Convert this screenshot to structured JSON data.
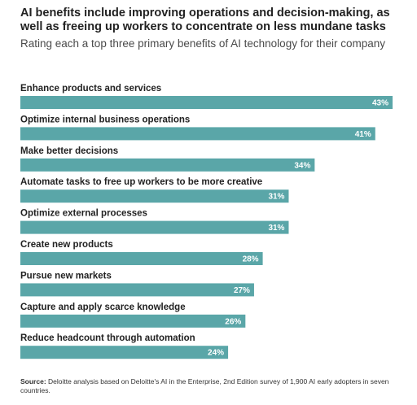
{
  "colors": {
    "bar": "#5aa6a8",
    "text": "#222222",
    "value_text": "#ffffff"
  },
  "footer": {
    "source_label": "Source:",
    "source_text": "Deloitte analysis based on Deloitte's AI in the Enterprise, 2nd Edition survey of 1,900 AI early adopters in seven countries."
  },
  "chart_data": {
    "type": "bar",
    "orientation": "horizontal",
    "title": "AI benefits include improving operations and decision-making, as well as freeing up workers to concentrate on less mundane tasks",
    "subtitle": "Rating each a top three primary benefits of AI technology for their company",
    "categories": [
      "Enhance products and services",
      "Optimize internal business operations",
      "Make better decisions",
      "Automate tasks to free up workers to be more creative",
      "Optimize external processes",
      "Create new products",
      "Pursue new markets",
      "Capture and apply scarce knowledge",
      "Reduce headcount through automation"
    ],
    "values": [
      43,
      41,
      34,
      31,
      31,
      28,
      27,
      26,
      24
    ],
    "value_labels": [
      "43%",
      "41%",
      "34%",
      "31%",
      "31%",
      "28%",
      "27%",
      "26%",
      "24%"
    ],
    "unit": "%",
    "xlim": [
      0,
      43
    ],
    "grid": false,
    "legend": "none"
  }
}
